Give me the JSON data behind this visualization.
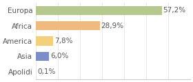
{
  "categories": [
    "Europa",
    "Africa",
    "America",
    "Asia",
    "Apolidi"
  ],
  "values": [
    57.2,
    28.9,
    7.8,
    6.0,
    0.1
  ],
  "labels": [
    "57,2%",
    "28,9%",
    "7,8%",
    "6,0%",
    "0,1%"
  ],
  "bar_colors": [
    "#b5c98e",
    "#f0b97d",
    "#f5d07a",
    "#7b8ec8",
    "#e0e0e0"
  ],
  "background_color": "#ffffff",
  "xlim": [
    0,
    70
  ],
  "label_fontsize": 7.5,
  "tick_fontsize": 7.5
}
